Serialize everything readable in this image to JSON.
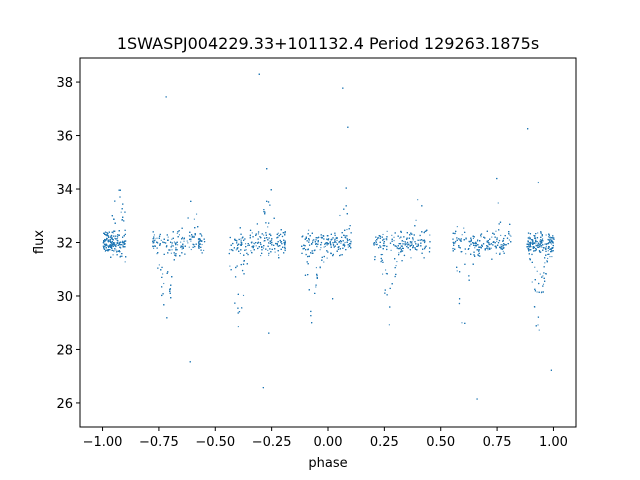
{
  "chart_data": {
    "type": "scatter",
    "title": "1SWASPJ004229.33+101132.4 Period 129263.1875s",
    "xlabel": "phase",
    "ylabel": "flux",
    "xlim": [
      -1.1,
      1.1
    ],
    "ylim": [
      25.1,
      38.9
    ],
    "xticks": [
      -1.0,
      -0.75,
      -0.5,
      -0.25,
      0.0,
      0.25,
      0.5,
      0.75,
      1.0
    ],
    "xtick_labels": [
      "−1.00",
      "−0.75",
      "−0.50",
      "−0.25",
      "0.00",
      "0.25",
      "0.50",
      "0.75",
      "1.00"
    ],
    "yticks": [
      26,
      28,
      30,
      32,
      34,
      36,
      38
    ],
    "ytick_labels": [
      "26",
      "28",
      "30",
      "32",
      "34",
      "36",
      "38"
    ],
    "grid": false,
    "marker_color": "#1f77b4",
    "series": [
      {
        "baseline_flux": 32.0,
        "observed_phase_ranges": [
          [
            -1.0,
            -0.9
          ],
          [
            -0.78,
            -0.55
          ],
          [
            -0.44,
            -0.19
          ],
          [
            -0.12,
            0.1
          ],
          [
            0.2,
            0.45
          ],
          [
            0.55,
            0.81
          ],
          [
            0.88,
            1.0
          ]
        ],
        "brightening_peaks": [
          {
            "phase": -0.93,
            "flux": 33.5
          },
          {
            "phase": -0.61,
            "flux": 33.5
          },
          {
            "phase": -0.27,
            "flux": 33.8
          },
          {
            "phase": 0.07,
            "flux": 33.5
          },
          {
            "phase": 0.4,
            "flux": 33.6
          },
          {
            "phase": 0.73,
            "flux": 33.8
          }
        ],
        "dimming_minima": [
          {
            "phase": -0.72,
            "flux": 29.0
          },
          {
            "phase": -0.4,
            "flux": 29.0
          },
          {
            "phase": -0.07,
            "flux": 29.2
          },
          {
            "phase": 0.27,
            "flux": 29.2
          },
          {
            "phase": 0.6,
            "flux": 28.9
          },
          {
            "phase": 0.93,
            "flux": 29.1
          }
        ],
        "flux_range": [
          25.8,
          38.5
        ]
      }
    ]
  }
}
